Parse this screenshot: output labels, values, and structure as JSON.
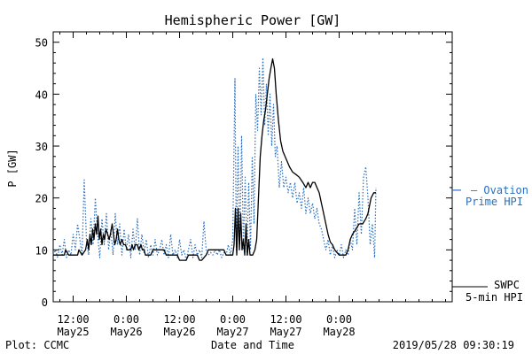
{
  "colors": {
    "ovation": "#2a6fc0",
    "swpc": "#000000"
  },
  "chart_data": {
    "type": "line",
    "title": "Hemispheric Power [GW]",
    "xlabel": "Date and Time",
    "ylabel": "P [GW]",
    "ylim": [
      0,
      52
    ],
    "xlim": [
      7.5,
      97.5
    ],
    "x_units": "hours since 2019-05-25 00:00 UT",
    "y_ticks": [
      0,
      10,
      20,
      30,
      40,
      50
    ],
    "x_tick_labels": [
      {
        "x": 12,
        "line1": "12:00",
        "line2": "May25"
      },
      {
        "x": 24,
        "line1": "0:00",
        "line2": "May26"
      },
      {
        "x": 36,
        "line1": "12:00",
        "line2": "May26"
      },
      {
        "x": 48,
        "line1": "0:00",
        "line2": "May27"
      },
      {
        "x": 60,
        "line1": "12:00",
        "line2": "May27"
      },
      {
        "x": 72,
        "line1": "0:00",
        "line2": "May28"
      }
    ],
    "grid": false,
    "series": [
      {
        "name": "Ovation Prime HPI",
        "legend_line1": "— Ovation",
        "legend_line2": "Prime HPI",
        "style": "dotted",
        "color": "#2a6fc0",
        "points": [
          [
            7.5,
            9
          ],
          [
            8,
            10
          ],
          [
            8.5,
            8.5
          ],
          [
            9,
            11
          ],
          [
            9.5,
            9
          ],
          [
            10,
            12
          ],
          [
            10.5,
            8.5
          ],
          [
            11,
            10
          ],
          [
            11.5,
            9
          ],
          [
            12,
            13
          ],
          [
            12.5,
            10
          ],
          [
            13,
            15
          ],
          [
            13.5,
            12
          ],
          [
            14,
            9
          ],
          [
            14.5,
            23.5
          ],
          [
            15,
            12
          ],
          [
            15.5,
            9
          ],
          [
            16,
            16
          ],
          [
            16.5,
            11
          ],
          [
            17,
            20
          ],
          [
            17.5,
            13
          ],
          [
            18,
            8.5
          ],
          [
            18.5,
            16
          ],
          [
            19,
            11
          ],
          [
            19.5,
            17
          ],
          [
            20,
            10
          ],
          [
            20.5,
            14
          ],
          [
            21,
            9
          ],
          [
            21.5,
            17
          ],
          [
            22,
            11
          ],
          [
            22.5,
            15
          ],
          [
            23,
            9
          ],
          [
            23.5,
            14
          ],
          [
            24,
            10
          ],
          [
            24.5,
            13
          ],
          [
            25,
            8.5
          ],
          [
            25.5,
            14
          ],
          [
            26,
            10
          ],
          [
            26.5,
            16
          ],
          [
            27,
            9
          ],
          [
            27.5,
            13
          ],
          [
            28,
            9.5
          ],
          [
            28.5,
            12
          ],
          [
            29,
            8.5
          ],
          [
            29.5,
            11
          ],
          [
            30,
            9
          ],
          [
            30.5,
            12
          ],
          [
            31,
            9
          ],
          [
            31.5,
            10
          ],
          [
            32,
            12
          ],
          [
            32.5,
            9
          ],
          [
            33,
            11
          ],
          [
            33.5,
            8.5
          ],
          [
            34,
            13
          ],
          [
            34.5,
            9
          ],
          [
            35,
            10
          ],
          [
            35.5,
            8.5
          ],
          [
            36,
            12
          ],
          [
            36.5,
            9
          ],
          [
            37,
            10
          ],
          [
            37.5,
            8
          ],
          [
            38,
            10
          ],
          [
            38.5,
            12
          ],
          [
            39,
            8.5
          ],
          [
            39.5,
            11
          ],
          [
            40,
            9
          ],
          [
            40.5,
            10
          ],
          [
            41,
            8.5
          ],
          [
            41.5,
            15.5
          ],
          [
            42,
            10
          ],
          [
            42.5,
            9
          ],
          [
            43,
            9.5
          ],
          [
            43.5,
            9
          ],
          [
            44,
            10
          ],
          [
            44.5,
            9
          ],
          [
            45,
            10
          ],
          [
            45.5,
            8.5
          ],
          [
            46,
            9.5
          ],
          [
            46.5,
            9
          ],
          [
            47,
            11
          ],
          [
            47.5,
            9
          ],
          [
            48,
            12
          ],
          [
            48.5,
            43
          ],
          [
            48.8,
            10
          ],
          [
            49.2,
            30
          ],
          [
            49.6,
            11
          ],
          [
            50,
            32
          ],
          [
            50.4,
            10
          ],
          [
            50.8,
            24
          ],
          [
            51.2,
            9
          ],
          [
            51.6,
            23
          ],
          [
            52,
            10
          ],
          [
            52.4,
            28
          ],
          [
            52.8,
            15
          ],
          [
            53.2,
            40
          ],
          [
            53.6,
            33
          ],
          [
            54,
            45
          ],
          [
            54.4,
            36
          ],
          [
            54.8,
            47
          ],
          [
            55.2,
            34
          ],
          [
            55.6,
            42
          ],
          [
            56,
            32
          ],
          [
            56.4,
            40
          ],
          [
            56.8,
            30
          ],
          [
            57.2,
            38
          ],
          [
            57.6,
            28
          ],
          [
            58,
            30
          ],
          [
            58.5,
            22
          ],
          [
            59,
            27
          ],
          [
            59.5,
            22
          ],
          [
            60,
            24
          ],
          [
            60.5,
            21
          ],
          [
            61,
            23
          ],
          [
            61.5,
            20
          ],
          [
            62,
            23
          ],
          [
            62.5,
            19
          ],
          [
            63,
            21
          ],
          [
            63.5,
            18
          ],
          [
            64,
            22
          ],
          [
            64.5,
            17
          ],
          [
            65,
            20
          ],
          [
            65.5,
            17
          ],
          [
            66,
            19
          ],
          [
            66.5,
            16
          ],
          [
            67,
            18
          ],
          [
            67.5,
            15
          ],
          [
            68,
            14
          ],
          [
            68.5,
            12
          ],
          [
            69,
            10
          ],
          [
            69.5,
            12
          ],
          [
            70,
            9
          ],
          [
            70.5,
            11
          ],
          [
            71,
            8.5
          ],
          [
            71.5,
            10
          ],
          [
            72,
            9
          ],
          [
            72.5,
            11
          ],
          [
            73,
            8.5
          ],
          [
            73.5,
            10
          ],
          [
            74,
            9
          ],
          [
            74.5,
            12
          ],
          [
            75,
            10
          ],
          [
            75.5,
            18
          ],
          [
            76,
            11
          ],
          [
            76.5,
            21
          ],
          [
            77,
            13
          ],
          [
            77.5,
            24
          ],
          [
            78,
            26
          ],
          [
            78.5,
            20
          ],
          [
            79,
            11
          ],
          [
            79.5,
            15
          ],
          [
            80,
            8.5
          ],
          [
            80.3,
            22
          ]
        ]
      },
      {
        "name": "SWPC 5-min HPI",
        "legend_line1": "SWPC",
        "legend_line2": "5-min HPI",
        "style": "solid",
        "color": "#000000",
        "points": [
          [
            7.5,
            9
          ],
          [
            10,
            9
          ],
          [
            10.3,
            10
          ],
          [
            11,
            9
          ],
          [
            13,
            9
          ],
          [
            13.3,
            10
          ],
          [
            14,
            9
          ],
          [
            14.8,
            10
          ],
          [
            15.2,
            12
          ],
          [
            15.5,
            10
          ],
          [
            15.8,
            13
          ],
          [
            16.1,
            11
          ],
          [
            16.4,
            14
          ],
          [
            16.7,
            12
          ],
          [
            17,
            15
          ],
          [
            17.3,
            13
          ],
          [
            17.6,
            16.5
          ],
          [
            17.9,
            12
          ],
          [
            18.2,
            14
          ],
          [
            18.5,
            11
          ],
          [
            18.8,
            13
          ],
          [
            19.1,
            12
          ],
          [
            19.4,
            14
          ],
          [
            19.8,
            13
          ],
          [
            20.1,
            12
          ],
          [
            20.4,
            13
          ],
          [
            20.8,
            15
          ],
          [
            21.1,
            13
          ],
          [
            21.4,
            11
          ],
          [
            21.7,
            12
          ],
          [
            22,
            14
          ],
          [
            22.3,
            12
          ],
          [
            22.6,
            11
          ],
          [
            23,
            12
          ],
          [
            23.4,
            11
          ],
          [
            23.8,
            11
          ],
          [
            24.2,
            10
          ],
          [
            25,
            10
          ],
          [
            25.3,
            11
          ],
          [
            25.6,
            10
          ],
          [
            26,
            11
          ],
          [
            26.5,
            11
          ],
          [
            26.8,
            10
          ],
          [
            27.3,
            11
          ],
          [
            27.6,
            10
          ],
          [
            28,
            10
          ],
          [
            28.3,
            9
          ],
          [
            29.5,
            9
          ],
          [
            30,
            10
          ],
          [
            32.5,
            10
          ],
          [
            33,
            9
          ],
          [
            35.5,
            9
          ],
          [
            36,
            8
          ],
          [
            37.5,
            8
          ],
          [
            38,
            9
          ],
          [
            40,
            9
          ],
          [
            40.5,
            8
          ],
          [
            41,
            8
          ],
          [
            42,
            9
          ],
          [
            42.5,
            10
          ],
          [
            46,
            10
          ],
          [
            46.5,
            9
          ],
          [
            48,
            9
          ],
          [
            48.3,
            11
          ],
          [
            48.6,
            18
          ],
          [
            48.9,
            9
          ],
          [
            49.2,
            18
          ],
          [
            49.5,
            10
          ],
          [
            49.8,
            17
          ],
          [
            50.1,
            10
          ],
          [
            50.4,
            12
          ],
          [
            50.7,
            9
          ],
          [
            51,
            15
          ],
          [
            51.3,
            9
          ],
          [
            51.6,
            12
          ],
          [
            51.9,
            9
          ],
          [
            52.5,
            9
          ],
          [
            53,
            10
          ],
          [
            53.4,
            12
          ],
          [
            53.8,
            20
          ],
          [
            54.2,
            28
          ],
          [
            54.6,
            32
          ],
          [
            55,
            35
          ],
          [
            55.4,
            37
          ],
          [
            55.8,
            40
          ],
          [
            56.2,
            43
          ],
          [
            56.6,
            45
          ],
          [
            57,
            46.8
          ],
          [
            57.4,
            45
          ],
          [
            57.8,
            40
          ],
          [
            58.3,
            35
          ],
          [
            58.8,
            31
          ],
          [
            59.3,
            29
          ],
          [
            59.8,
            28
          ],
          [
            60.3,
            27
          ],
          [
            60.8,
            26
          ],
          [
            61.5,
            25
          ],
          [
            62.3,
            24.5
          ],
          [
            63,
            24
          ],
          [
            63.8,
            23
          ],
          [
            64.5,
            22
          ],
          [
            65,
            23
          ],
          [
            65.5,
            22
          ],
          [
            66,
            23
          ],
          [
            66.5,
            23
          ],
          [
            67,
            22
          ],
          [
            67.5,
            21
          ],
          [
            68,
            19
          ],
          [
            68.5,
            17
          ],
          [
            69,
            15
          ],
          [
            69.5,
            13
          ],
          [
            70,
            11.5
          ],
          [
            70.5,
            11
          ],
          [
            71,
            10
          ],
          [
            72,
            9
          ],
          [
            73.5,
            9
          ],
          [
            74,
            10
          ],
          [
            74.5,
            12
          ],
          [
            75,
            13
          ],
          [
            75.8,
            14
          ],
          [
            76.5,
            15
          ],
          [
            77.3,
            15
          ],
          [
            78,
            16
          ],
          [
            78.5,
            17
          ],
          [
            79.2,
            20
          ],
          [
            79.8,
            21
          ],
          [
            80.3,
            21
          ]
        ]
      }
    ],
    "legend_placement": "right",
    "annotations": {
      "plot_credit": "Plot: CCMC",
      "timestamp": "2019/05/28 09:30:19"
    }
  }
}
